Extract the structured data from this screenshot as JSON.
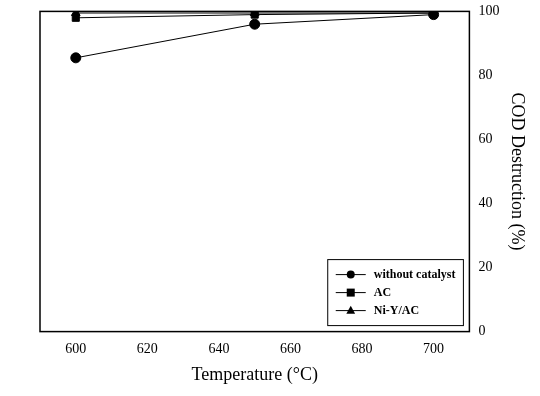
{
  "chart_data": {
    "type": "line",
    "x_label": "Temperature (°C)",
    "y_label": "COD Destruction (%)",
    "x": [
      600,
      650,
      700
    ],
    "series": [
      {
        "name": "without catalyst",
        "color": "#000000",
        "marker": "circle",
        "values": [
          85.5,
          96,
          99
        ]
      },
      {
        "name": "AC",
        "color": "#000000",
        "marker": "square",
        "values": [
          98,
          99,
          99.5
        ]
      },
      {
        "name": "Ni-Y/AC",
        "color": "#000000",
        "marker": "triangle",
        "values": [
          99.5,
          99.5,
          99.5
        ]
      }
    ],
    "xlim": [
      590,
      710
    ],
    "xticks": [
      600,
      620,
      640,
      660,
      680,
      700
    ],
    "ylim": [
      0,
      100
    ],
    "yticks": [
      0,
      20,
      40,
      60,
      80,
      100
    ],
    "grid": false,
    "legend": "lower right"
  }
}
